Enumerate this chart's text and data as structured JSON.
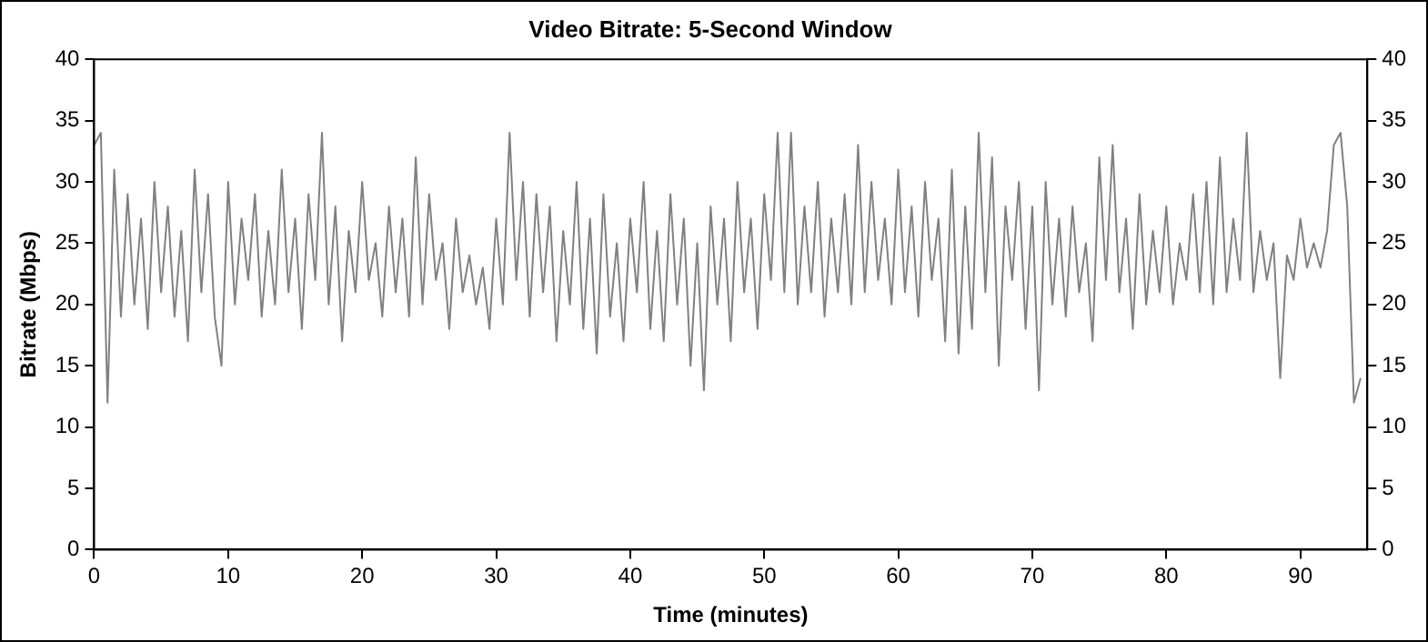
{
  "chart_data": {
    "type": "line",
    "title": "Video Bitrate: 5-Second Window",
    "xlabel": "Time (minutes)",
    "ylabel": "Bitrate (Mbps)",
    "xlim": [
      0,
      95
    ],
    "xticks": [
      0,
      10,
      20,
      30,
      40,
      50,
      60,
      70,
      80,
      90
    ],
    "ylim": [
      0,
      40
    ],
    "yticks": [
      0,
      5,
      10,
      15,
      20,
      25,
      30,
      35,
      40
    ],
    "y2lim": [
      0,
      40
    ],
    "y2ticks": [
      0,
      5,
      10,
      15,
      20,
      25,
      30,
      35,
      40
    ],
    "grid": false,
    "legend": false,
    "marker": "none",
    "line_style": "solid",
    "series": [
      {
        "color": "#808080",
        "x": [
          0,
          0.5,
          1,
          1.5,
          2,
          2.5,
          3,
          3.5,
          4,
          4.5,
          5,
          5.5,
          6,
          6.5,
          7,
          7.5,
          8,
          8.5,
          9,
          9.5,
          10,
          10.5,
          11,
          11.5,
          12,
          12.5,
          13,
          13.5,
          14,
          14.5,
          15,
          15.5,
          16,
          16.5,
          17,
          17.5,
          18,
          18.5,
          19,
          19.5,
          20,
          20.5,
          21,
          21.5,
          22,
          22.5,
          23,
          23.5,
          24,
          24.5,
          25,
          25.5,
          26,
          26.5,
          27,
          27.5,
          28,
          28.5,
          29,
          29.5,
          30,
          30.5,
          31,
          31.5,
          32,
          32.5,
          33,
          33.5,
          34,
          34.5,
          35,
          35.5,
          36,
          36.5,
          37,
          37.5,
          38,
          38.5,
          39,
          39.5,
          40,
          40.5,
          41,
          41.5,
          42,
          42.5,
          43,
          43.5,
          44,
          44.5,
          45,
          45.5,
          46,
          46.5,
          47,
          47.5,
          48,
          48.5,
          49,
          49.5,
          50,
          50.5,
          51,
          51.5,
          52,
          52.5,
          53,
          53.5,
          54,
          54.5,
          55,
          55.5,
          56,
          56.5,
          57,
          57.5,
          58,
          58.5,
          59,
          59.5,
          60,
          60.5,
          61,
          61.5,
          62,
          62.5,
          63,
          63.5,
          64,
          64.5,
          65,
          65.5,
          66,
          66.5,
          67,
          67.5,
          68,
          68.5,
          69,
          69.5,
          70,
          70.5,
          71,
          71.5,
          72,
          72.5,
          73,
          73.5,
          74,
          74.5,
          75,
          75.5,
          76,
          76.5,
          77,
          77.5,
          78,
          78.5,
          79,
          79.5,
          80,
          80.5,
          81,
          81.5,
          82,
          82.5,
          83,
          83.5,
          84,
          84.5,
          85,
          85.5,
          86,
          86.5,
          87,
          87.5,
          88,
          88.5,
          89,
          89.5,
          90,
          90.5,
          91,
          91.5,
          92,
          92.5,
          93,
          93.5,
          94,
          94.5
        ],
        "values": [
          33,
          34,
          12,
          31,
          19,
          29,
          20,
          27,
          18,
          30,
          21,
          28,
          19,
          26,
          17,
          31,
          21,
          29,
          19,
          15,
          30,
          20,
          27,
          22,
          29,
          19,
          26,
          20,
          31,
          21,
          27,
          18,
          29,
          22,
          34,
          20,
          28,
          17,
          26,
          21,
          30,
          22,
          25,
          19,
          28,
          21,
          27,
          19,
          32,
          20,
          29,
          22,
          25,
          18,
          27,
          21,
          24,
          20,
          23,
          18,
          27,
          20,
          34,
          22,
          30,
          19,
          29,
          21,
          28,
          17,
          26,
          20,
          30,
          18,
          27,
          16,
          29,
          19,
          25,
          17,
          27,
          21,
          30,
          18,
          26,
          17,
          29,
          20,
          27,
          15,
          25,
          13,
          28,
          20,
          27,
          17,
          30,
          21,
          27,
          18,
          29,
          22,
          34,
          21,
          34,
          20,
          28,
          21,
          30,
          19,
          27,
          21,
          29,
          20,
          33,
          21,
          30,
          22,
          27,
          20,
          31,
          21,
          28,
          19,
          30,
          22,
          27,
          17,
          31,
          16,
          28,
          18,
          34,
          21,
          32,
          15,
          28,
          22,
          30,
          18,
          28,
          13,
          30,
          20,
          27,
          19,
          28,
          21,
          25,
          17,
          32,
          22,
          33,
          21,
          27,
          18,
          29,
          20,
          26,
          21,
          28,
          20,
          25,
          22,
          29,
          21,
          30,
          20,
          32,
          21,
          27,
          22,
          34,
          21,
          26,
          22,
          25,
          14,
          24,
          22,
          27,
          23,
          25,
          23,
          26,
          33,
          34,
          28,
          12,
          14
        ]
      }
    ]
  }
}
